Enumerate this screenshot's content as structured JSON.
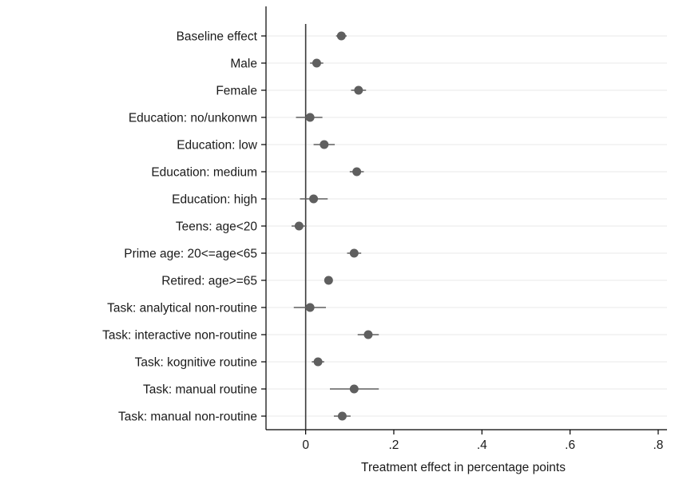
{
  "chart_data": {
    "type": "scatter",
    "subtype": "coefficient-plot",
    "orientation": "horizontal",
    "xlabel": "Treatment effect in percentage points",
    "xlim": [
      -0.09,
      0.82
    ],
    "xticks": [
      0,
      0.2,
      0.4,
      0.6,
      0.8
    ],
    "xtick_labels": [
      "0",
      ".2",
      ".4",
      ".6",
      ".8"
    ],
    "zero_line": 0,
    "grid": "horizontal",
    "colors": {
      "marker": "#5f5f5f",
      "ci": "#5f5f5f",
      "grid": "#eaeaea",
      "axis": "#000000",
      "zero": "#3a3a3a"
    },
    "categories": [
      "Baseline effect",
      "Male",
      "Female",
      "Education: no/unkonwn",
      "Education: low",
      "Education: medium",
      "Education: high",
      "Teens: age<20",
      "Prime age: 20<=age<65",
      "Retired: age>=65",
      "Task: analytical non-routine",
      "Task: interactive non-routine",
      "Task: kognitive routine",
      "Task: manual routine",
      "Task: manual non-routine"
    ],
    "estimates": [
      0.081,
      0.025,
      0.12,
      0.01,
      0.042,
      0.116,
      0.018,
      -0.015,
      0.11,
      0.052,
      0.01,
      0.142,
      0.028,
      0.11,
      0.083
    ],
    "ci_low": [
      0.069,
      0.01,
      0.103,
      -0.022,
      0.018,
      0.1,
      -0.013,
      -0.032,
      0.094,
      0.045,
      -0.027,
      0.118,
      0.014,
      0.055,
      0.064
    ],
    "ci_high": [
      0.093,
      0.04,
      0.137,
      0.038,
      0.066,
      0.132,
      0.05,
      0.002,
      0.126,
      0.059,
      0.046,
      0.166,
      0.042,
      0.166,
      0.102
    ]
  }
}
